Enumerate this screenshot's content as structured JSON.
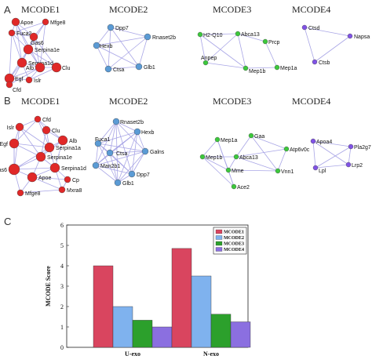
{
  "panels": {
    "a": "A",
    "b": "B",
    "c": "C"
  },
  "colors": {
    "MCODE1": "#e02828",
    "MCODE2": "#5b9bd5",
    "MCODE3": "#3cc83c",
    "MCODE4": "#8052e6",
    "edge": "#a9a6e6",
    "bar1": "#d9455f",
    "bar2": "#7fb2ee",
    "bar3": "#2ca02c",
    "bar4": "#8b6fe0"
  },
  "network_a": {
    "titles": [
      "MCODE1",
      "MCODE2",
      "MCODE3",
      "MCODE4"
    ],
    "nodes": [
      [
        "Apoe",
        "Mfge8",
        "Fuca2",
        "Gas6",
        "Serpina1e",
        "Serpina1d",
        "Alb",
        "Clu",
        "Egf",
        "Islr",
        "Cfd"
      ],
      [
        "Dpp7",
        "Hexb",
        "Rnaset2b",
        "Ctsa",
        "Glb1"
      ],
      [
        "H2-Q10",
        "Abca13",
        "Prcp",
        "Anpep",
        "Mep1b",
        "Mep1a"
      ],
      [
        "Ctsd",
        "Napsa",
        "Ctsb"
      ]
    ]
  },
  "network_b": {
    "titles": [
      "MCODE1",
      "MCODE2",
      "MCODE3",
      "MCODE4"
    ],
    "nodes": [
      [
        "Cfd",
        "Islr",
        "Clu",
        "Alb",
        "Egf",
        "Serpina1a",
        "Serpina1e",
        "Gas6",
        "Serpina1d",
        "Apoe",
        "Cp",
        "Mfge8",
        "Mxra8"
      ],
      [
        "Rnaset2b",
        "Hexb",
        "Fuca1",
        "Ctsa",
        "Galns",
        "Man2b1",
        "Dpp7",
        "Glb1"
      ],
      [
        "Gaa",
        "Mep1a",
        "Abca13",
        "Atp6v0c",
        "Mep1b",
        "Mme",
        "Vnn1",
        "Ace2"
      ],
      [
        "Apoa4",
        "Pla2g7",
        "Lpl",
        "Lrp2"
      ]
    ]
  },
  "chart_data": {
    "type": "bar",
    "categories": [
      "U-exo",
      "N-exo"
    ],
    "series": [
      {
        "name": "MCODE1",
        "values": [
          4.0,
          4.85
        ]
      },
      {
        "name": "MCODE2",
        "values": [
          2.0,
          3.5
        ]
      },
      {
        "name": "MCODE3",
        "values": [
          1.33,
          1.625
        ]
      },
      {
        "name": "MCODE4",
        "values": [
          1.0,
          1.25
        ]
      }
    ],
    "ylabel": "MCODE Score",
    "xlabel": "",
    "ylim": [
      0,
      6
    ],
    "yticks": [
      "0",
      "1",
      "2",
      "3",
      "4",
      "5",
      "6"
    ],
    "legend": "top-right",
    "grid": false
  }
}
